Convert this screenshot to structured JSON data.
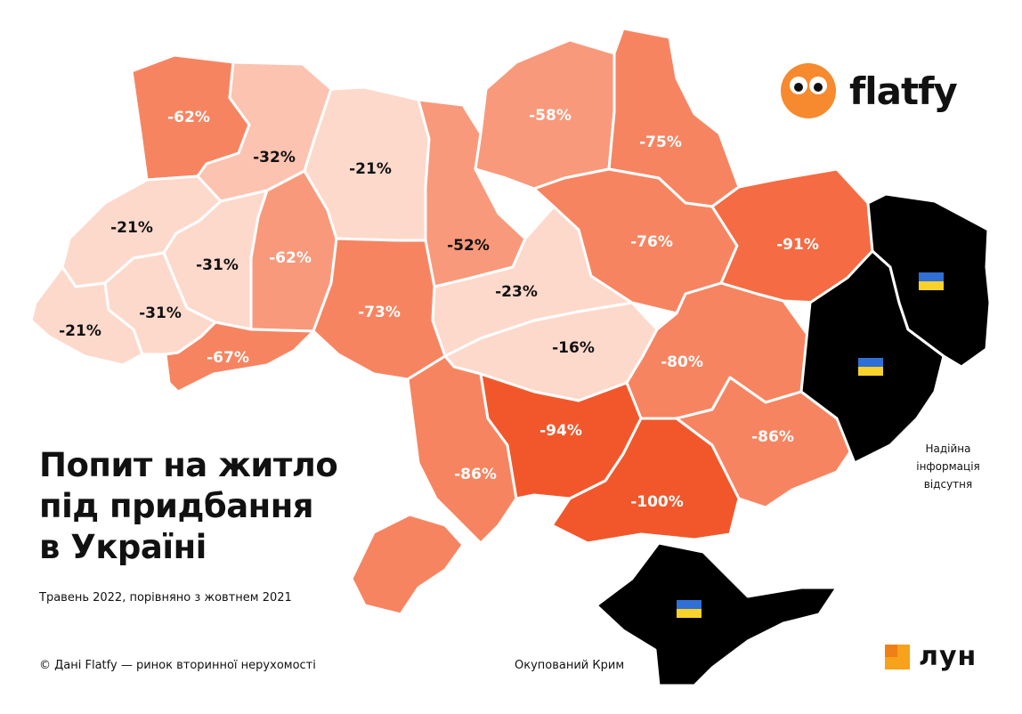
{
  "title_lines": [
    "Попит на житло",
    "під придбання",
    "в Україні"
  ],
  "subtitle": "Травень 2022, порівняно з жовтнем 2021",
  "credit": "© Дані Flatfy — ринок вторинної нерухомості",
  "occupied_crimea_label": "Окупований Крим",
  "no_data_lines": [
    "Надійна",
    "інформація",
    "відсутня"
  ],
  "brand_logo": "flatfy",
  "partner_logo": "лун",
  "colors": {
    "very_light": "#fdd9cc",
    "light": "#fcc3b0",
    "medium": "#f9997b",
    "medium_dark": "#f78461",
    "dark": "#f46b44",
    "darkest": "#f2572c",
    "occupied": "#000000",
    "brand_orange": "#f7892f"
  },
  "regions": [
    {
      "id": "volyn",
      "label": "-62%",
      "value": -62
    },
    {
      "id": "rivne",
      "label": "-32%",
      "value": -32
    },
    {
      "id": "zhytomyr",
      "label": "-21%",
      "value": -21
    },
    {
      "id": "kyiv",
      "label": "-52%",
      "value": -52
    },
    {
      "id": "chernihiv",
      "label": "-58%",
      "value": -58
    },
    {
      "id": "sumy",
      "label": "-75%",
      "value": -75
    },
    {
      "id": "lviv",
      "label": "-21%",
      "value": -21
    },
    {
      "id": "ternopil",
      "label": "-31%",
      "value": -31
    },
    {
      "id": "khmelnytskyi",
      "label": "-62%",
      "value": -62
    },
    {
      "id": "zakarpattia",
      "label": "-21%",
      "value": -21
    },
    {
      "id": "ivano_frankivsk",
      "label": "-31%",
      "value": -31
    },
    {
      "id": "chernivtsi",
      "label": "-67%",
      "value": -67
    },
    {
      "id": "vinnytsia",
      "label": "-73%",
      "value": -73
    },
    {
      "id": "cherkasy",
      "label": "-23%",
      "value": -23
    },
    {
      "id": "poltava",
      "label": "-76%",
      "value": -76
    },
    {
      "id": "kharkiv",
      "label": "-91%",
      "value": -91
    },
    {
      "id": "kirovohrad",
      "label": "-16%",
      "value": -16
    },
    {
      "id": "dnipropetrovsk",
      "label": "-80%",
      "value": -80
    },
    {
      "id": "odesa",
      "label": "-86%",
      "value": -86
    },
    {
      "id": "mykolaiv",
      "label": "-94%",
      "value": -94
    },
    {
      "id": "kherson",
      "label": "-100%",
      "value": -100
    },
    {
      "id": "zaporizhzhia",
      "label": "-86%",
      "value": -86
    }
  ]
}
